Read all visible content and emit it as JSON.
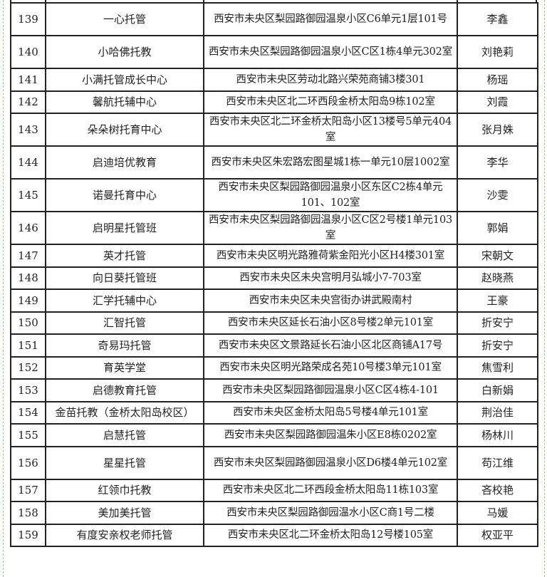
{
  "rows": [
    {
      "no": "139",
      "name": "一心托管",
      "address": "西安市未央区梨园路御园温泉小区C6单元1层101号",
      "contact": "李鑫"
    },
    {
      "no": "140",
      "name": "小哈佛托教",
      "address": "西安市未央区梨园路御园温泉小区C区1栋4单元302室",
      "contact": "刘艳莉"
    },
    {
      "no": "141",
      "name": "小满托管成长中心",
      "address": "西安市未央区劳动北路兴荣苑商铺3楼301",
      "contact": "杨瑶"
    },
    {
      "no": "142",
      "name": "馨航托辅中心",
      "address": "西安市未央区北二环西段金桥太阳岛9栋102室",
      "contact": "刘霞"
    },
    {
      "no": "143",
      "name": "朵朵树托育中心",
      "address": "西安市未央区北二环金桥太阳岛小区13楼号5单元404室",
      "contact": "张月姝"
    },
    {
      "no": "144",
      "name": "启迪培优教育",
      "address": "西安市未央区朱宏路宏图星城1栋一单元10层1002室",
      "contact": "李华"
    },
    {
      "no": "145",
      "name": "诺曼托育中心",
      "address": "西安市未央区梨园路御园温泉小区东区C2栋4单元101、102室",
      "contact": "沙雯"
    },
    {
      "no": "146",
      "name": "启明星托管班",
      "address": "西安市未央区梨园路御园温泉小区C区2号楼1单元103室",
      "contact": "郭娟"
    },
    {
      "no": "147",
      "name": "英才托管",
      "address": "西安市未央区明光路雅荷紫金阳光小区H4楼301室",
      "contact": "宋朝文"
    },
    {
      "no": "148",
      "name": "向日葵托管班",
      "address": "西安市未央区未央宫明月弘城小7-703室",
      "contact": "赵晓燕"
    },
    {
      "no": "149",
      "name": "汇学托辅中心",
      "address": "西安市未央区未央宫街办讲武殿南村",
      "contact": "王豪"
    },
    {
      "no": "150",
      "name": "汇智托管",
      "address": "西安市未央区延长石油小区8号楼2单元101室",
      "contact": "折安宁"
    },
    {
      "no": "151",
      "name": "奇易玛托管",
      "address": "西安市未央区文景路延长石油小区北区商铺A17号",
      "contact": "折安宁"
    },
    {
      "no": "152",
      "name": "育英学堂",
      "address": "西安市未央区明光路荣成名苑10号楼3单元101室",
      "contact": "焦雪利"
    },
    {
      "no": "153",
      "name": "启德教育托管",
      "address": "西安市未央区梨园路御园温泉小区C区4栋4-101",
      "contact": "白新娟"
    },
    {
      "no": "154",
      "name": "金苗托教（金桥太阳岛校区）",
      "address": "西安市未央区金桥太阳岛5号楼4单元101室",
      "contact": "荆治佳"
    },
    {
      "no": "155",
      "name": "启慧托管",
      "address": "西安市未央区梨园路御园温朱小区E8栋0202室",
      "contact": "杨林川"
    },
    {
      "no": "156",
      "name": "星星托管",
      "address": "西安市未央区梨园路御园温泉小区D6楼4单元102室",
      "contact": "苟江维"
    },
    {
      "no": "157",
      "name": "红领巾托教",
      "address": "西安市未央区北二环西段金桥太阳岛11栋103室",
      "contact": "吝校艳"
    },
    {
      "no": "158",
      "name": "美加美托管",
      "address": "西安市未央区梨园路御园温水小区C商1号二楼",
      "contact": "马媛"
    },
    {
      "no": "159",
      "name": "有度安亲权老师托管",
      "address": "西安市未央区北二环金桥太阳岛12号楼105室",
      "contact": "权亚平"
    }
  ],
  "double_rows": [
    "139",
    "140",
    "143",
    "144",
    "145",
    "146",
    "156"
  ],
  "colors": {
    "border": "#222222",
    "frame": "#9cc98a"
  }
}
